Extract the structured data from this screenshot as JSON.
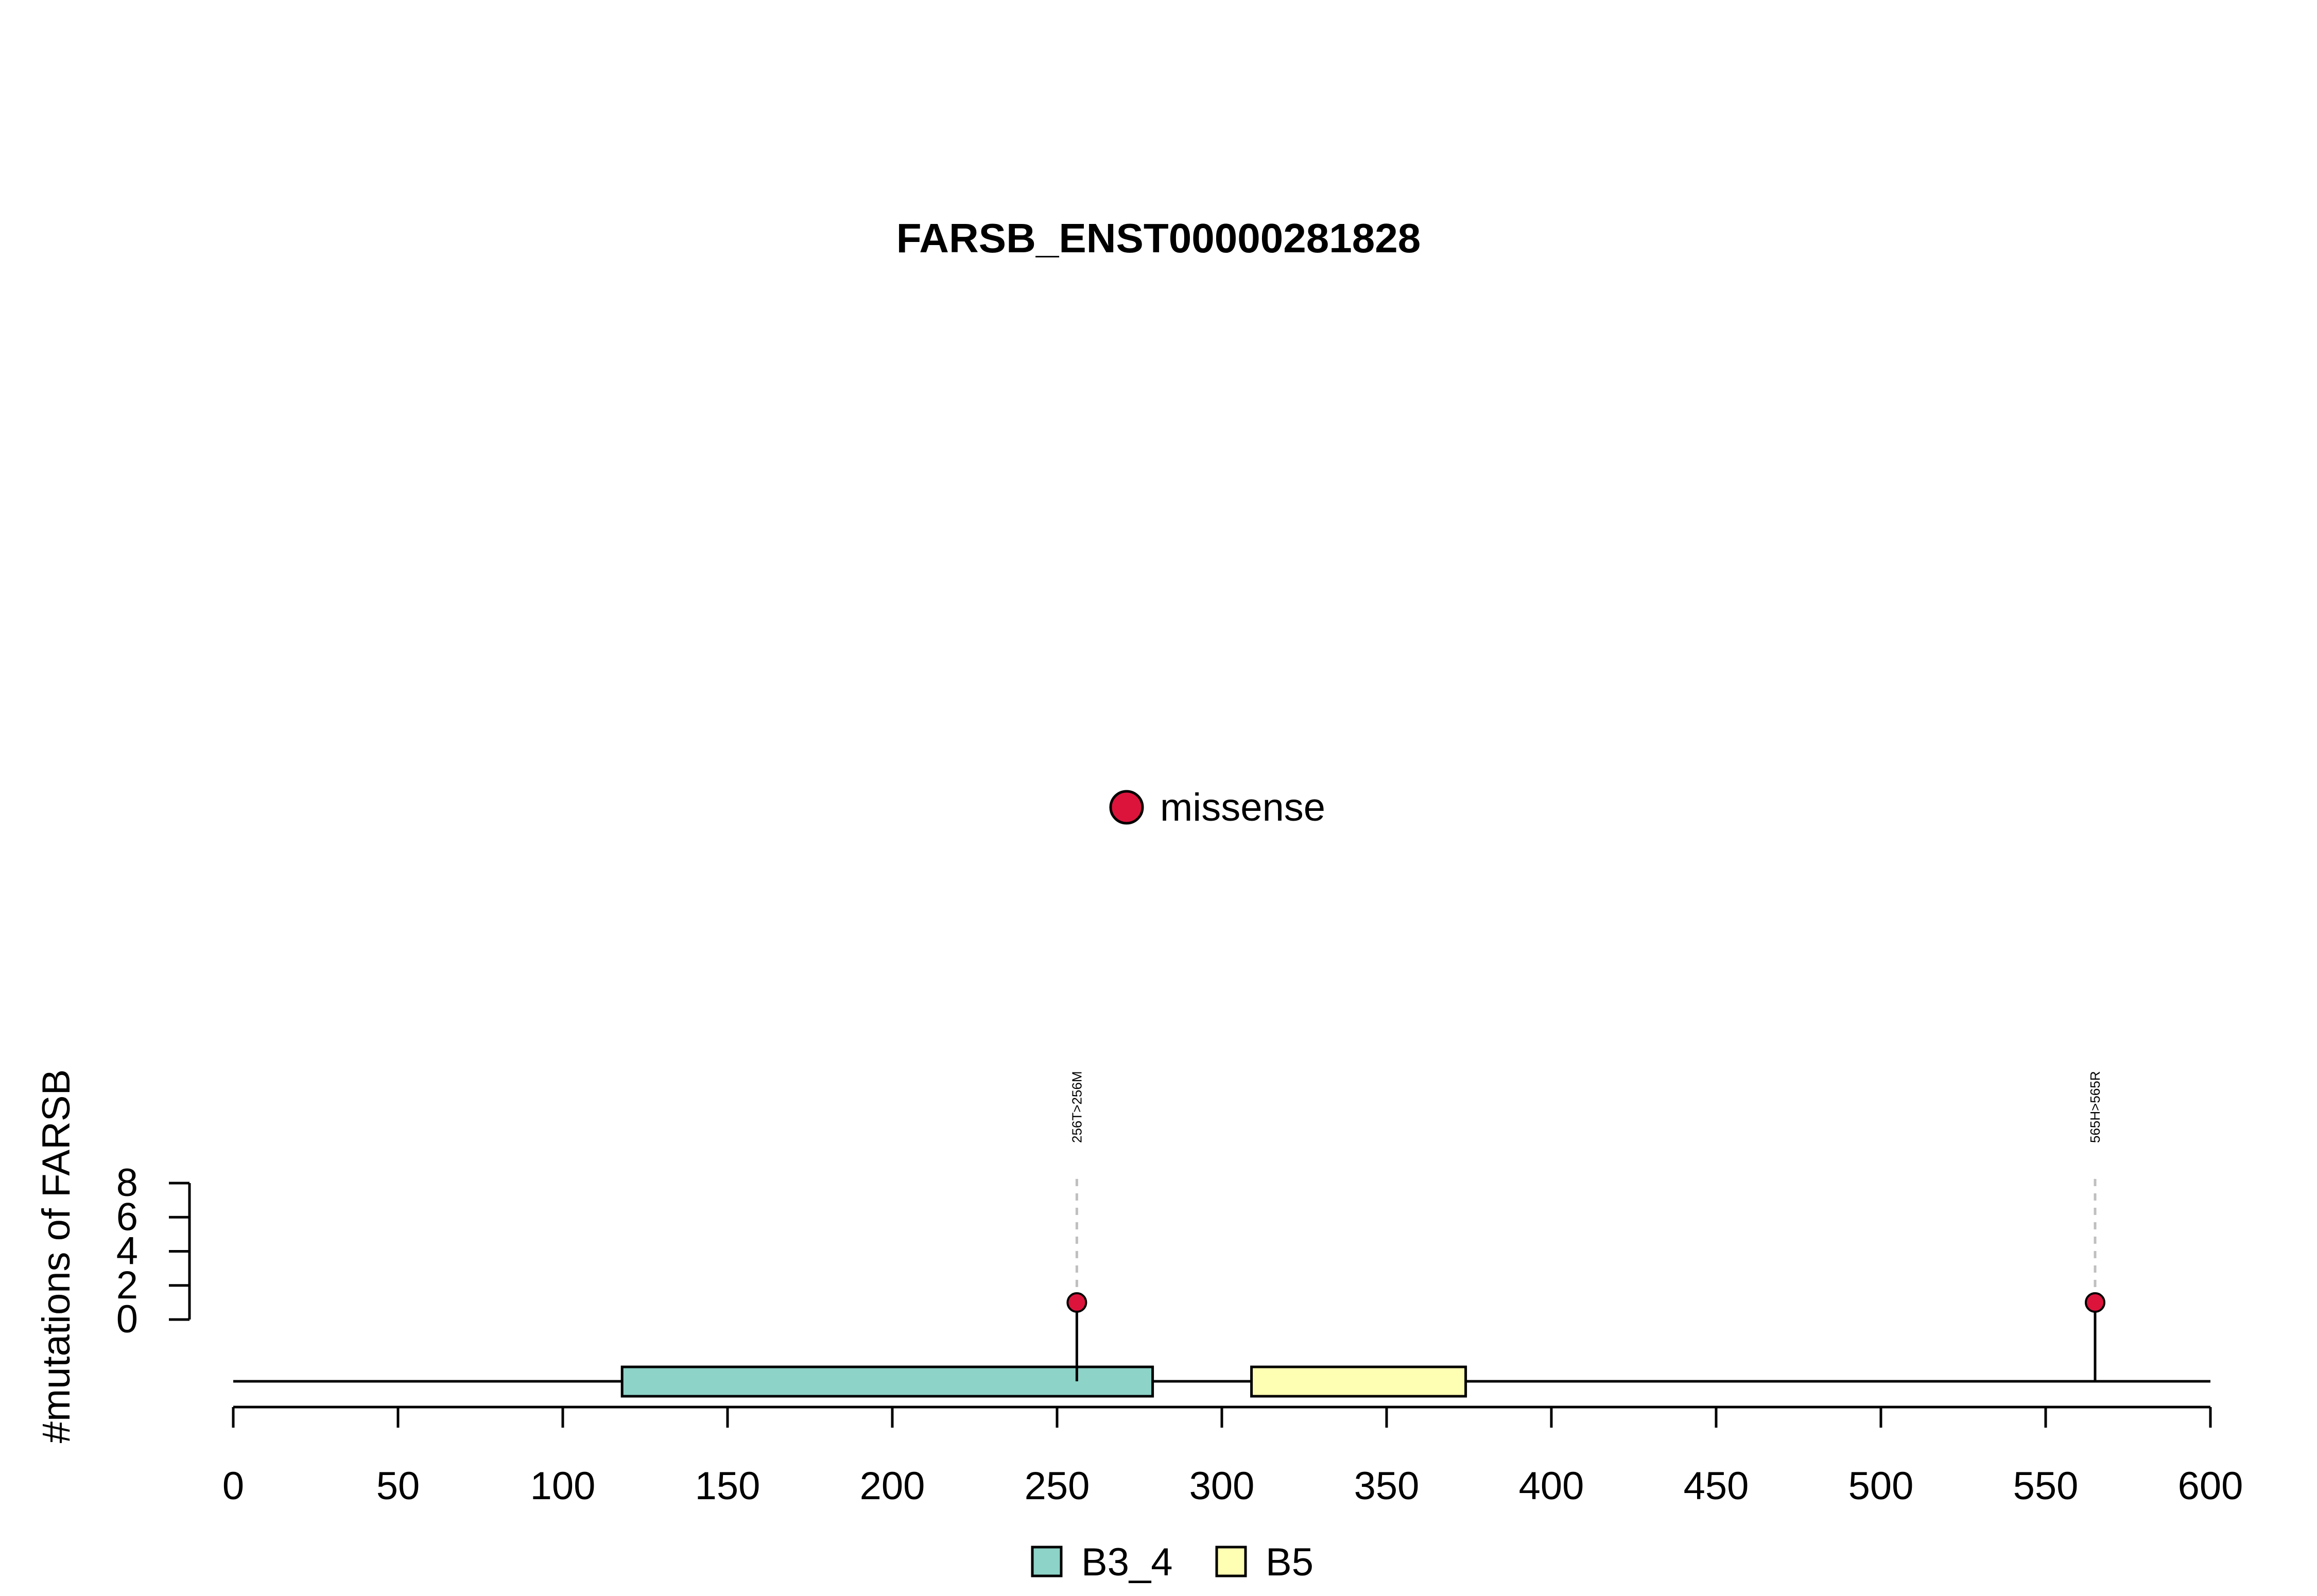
{
  "chart_data": {
    "type": "lollipop",
    "title": "FARSB_ENST00000281828",
    "ylabel": "#mutations of FARSB",
    "xlim": [
      0,
      600
    ],
    "x_ticks": [
      0,
      50,
      100,
      150,
      200,
      250,
      300,
      350,
      400,
      450,
      500,
      550,
      600
    ],
    "y_ticks": [
      0,
      2,
      4,
      6,
      8
    ],
    "protein_length": 600,
    "domains": [
      {
        "name": "B3_4",
        "start": 118,
        "end": 279,
        "color": "#8DD3C7"
      },
      {
        "name": "B5",
        "start": 309,
        "end": 374,
        "color": "#FFFFB3"
      }
    ],
    "mutations": [
      {
        "position": 256,
        "count": 1,
        "label": "256T>256M",
        "type": "missense"
      },
      {
        "position": 565,
        "count": 1,
        "label": "565H>565R",
        "type": "missense"
      }
    ],
    "mutation_legend": [
      {
        "label": "missense",
        "color": "#DC143C"
      }
    ],
    "domain_legend": [
      {
        "label": "B3_4",
        "color": "#8DD3C7"
      },
      {
        "label": "B5",
        "color": "#FFFFB3"
      }
    ]
  }
}
